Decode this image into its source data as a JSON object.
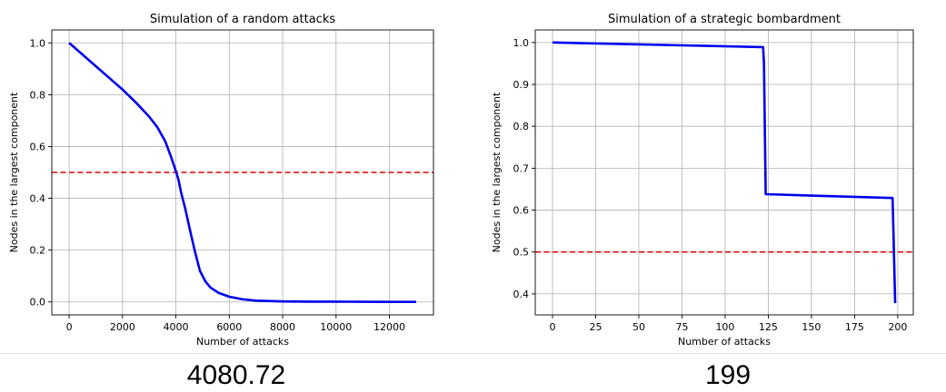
{
  "colors": {
    "series": "#0000ee",
    "threshold": "#dd0000",
    "grid": "#b0b0b0",
    "axes": "#000000"
  },
  "chart_data": [
    {
      "type": "line",
      "title": "Simulation of a random attacks",
      "xlabel": "Number of attacks",
      "ylabel": "Nodes in the largest component",
      "xlim": [
        -650,
        13650
      ],
      "ylim": [
        -0.05,
        1.05
      ],
      "xticks": [
        0,
        2000,
        4000,
        6000,
        8000,
        10000,
        12000
      ],
      "yticks": [
        0.0,
        0.2,
        0.4,
        0.6,
        0.8,
        1.0
      ],
      "xtick_labels": [
        "0",
        "2000",
        "4000",
        "6000",
        "8000",
        "10000",
        "12000"
      ],
      "ytick_labels": [
        "0.0",
        "0.2",
        "0.4",
        "0.6",
        "0.8",
        "1.0"
      ],
      "grid": true,
      "threshold": {
        "y": 0.5,
        "style": "dashed",
        "color": "#dd0000"
      },
      "series": [
        {
          "color": "#0000ee",
          "x": [
            0,
            500,
            1000,
            1500,
            2000,
            2500,
            3000,
            3300,
            3600,
            3800,
            4000,
            4100,
            4200,
            4350,
            4500,
            4700,
            4900,
            5100,
            5300,
            5600,
            6000,
            6500,
            7000,
            8000,
            9000,
            10000,
            11000,
            12000,
            13000
          ],
          "y": [
            1.0,
            0.955,
            0.91,
            0.865,
            0.82,
            0.77,
            0.715,
            0.675,
            0.62,
            0.565,
            0.505,
            0.47,
            0.42,
            0.36,
            0.29,
            0.2,
            0.12,
            0.08,
            0.055,
            0.035,
            0.02,
            0.01,
            0.005,
            0.002,
            0.001,
            0.001,
            0.0005,
            0.0,
            0.0
          ]
        }
      ]
    },
    {
      "type": "line",
      "title": "Simulation of a strategic bombardment",
      "xlabel": "Number of attacks",
      "ylabel": "Nodes in the largest component",
      "xlim": [
        -10,
        209
      ],
      "ylim": [
        0.35,
        1.03
      ],
      "xticks": [
        0,
        25,
        50,
        75,
        100,
        125,
        150,
        175,
        200
      ],
      "yticks": [
        0.4,
        0.5,
        0.6,
        0.7,
        0.8,
        0.9,
        1.0
      ],
      "xtick_labels": [
        "0",
        "25",
        "50",
        "75",
        "100",
        "125",
        "150",
        "175",
        "200"
      ],
      "ytick_labels": [
        "0.4",
        "0.5",
        "0.6",
        "0.7",
        "0.8",
        "0.9",
        "1.0"
      ],
      "grid": true,
      "threshold": {
        "y": 0.5,
        "style": "dashed",
        "color": "#dd0000"
      },
      "series": [
        {
          "color": "#0000ee",
          "x": [
            0,
            122,
            122.5,
            123.5,
            197,
            197.5,
            198.5
          ],
          "y": [
            1.0,
            0.989,
            0.95,
            0.638,
            0.629,
            0.55,
            0.378
          ]
        }
      ]
    }
  ],
  "captions": {
    "left": "4080.72",
    "right": "199"
  }
}
